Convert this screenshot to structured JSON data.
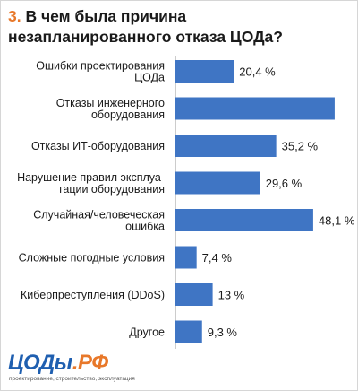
{
  "title": {
    "number": "3.",
    "text": "В чем была причина незапланированного отказа ЦОДа?"
  },
  "chart_data": {
    "type": "bar",
    "orientation": "horizontal",
    "categories": [
      [
        "Ошибки проектирования",
        "ЦОДа"
      ],
      [
        "Отказы инженерного",
        "оборудования"
      ],
      [
        "Отказы ИТ-оборудования"
      ],
      [
        "Нарушение правил эксплуа-",
        "тации оборудования"
      ],
      [
        "Случайная/человеческая",
        "ошибка"
      ],
      [
        "Сложные погодные условия"
      ],
      [
        "Киберпреступления (DDoS)"
      ],
      [
        "Другое"
      ]
    ],
    "values": [
      20.4,
      55.6,
      35.2,
      29.6,
      48.1,
      7.4,
      13,
      9.3
    ],
    "labels": [
      "20,4 %",
      "",
      "35,2 %",
      "29,6 %",
      "48,1 %",
      "7,4 %",
      "13 %",
      "9,3 %"
    ],
    "xlim": [
      0,
      60
    ],
    "bar_color": "#3f75c4",
    "axis_color": "#9a9a9a",
    "grid": false
  },
  "logo": {
    "text_main": "ЦОДы",
    "text_accent": ".РФ",
    "tagline": "проектирование, строительство, эксплуатация"
  },
  "colors": {
    "accent": "#e8782a",
    "brand_blue": "#1f5fb0"
  }
}
